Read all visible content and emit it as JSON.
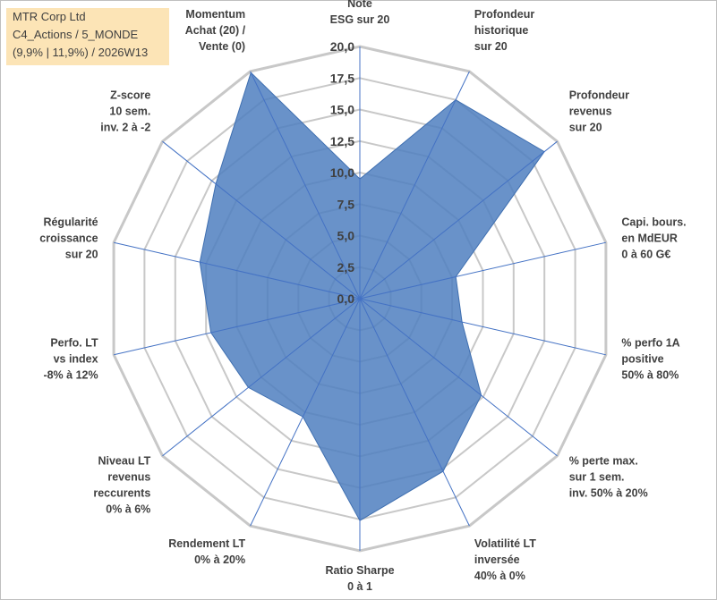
{
  "title": {
    "line1": "MTR Corp Ltd",
    "line2": "C4_Actions / 5_MONDE",
    "line3": "(9,9% | 11,9%) / 2026W13"
  },
  "chart_data": {
    "type": "radar",
    "title": "MTR Corp Ltd",
    "rmin": 0,
    "rmax": 20,
    "tick_step": 2.5,
    "tick_labels": [
      "0,0",
      "2,5",
      "5,0",
      "7,5",
      "10,0",
      "12,5",
      "15,0",
      "17,5",
      "20,0"
    ],
    "axes": [
      {
        "label": [
          "Note",
          "ESG sur 20"
        ],
        "value": 9.5
      },
      {
        "label": [
          "Profondeur",
          "historique",
          "sur 20"
        ],
        "value": 17.5
      },
      {
        "label": [
          "Profondeur",
          "revenus",
          "sur 20"
        ],
        "value": 18.7
      },
      {
        "label": [
          "Capi. bours.",
          "en MdEUR",
          "0 à 60 G€"
        ],
        "value": 7.8
      },
      {
        "label": [
          "% perfo 1A",
          "positive",
          "50% à 80%"
        ],
        "value": 8.3
      },
      {
        "label": [
          "% perte max.",
          "sur 1 sem.",
          "inv. 50% à 20%"
        ],
        "value": 12.3
      },
      {
        "label": [
          "Volatilité LT",
          "inversée",
          "40% à 0%"
        ],
        "value": 15.2
      },
      {
        "label": [
          "Ratio Sharpe",
          "0 à 1"
        ],
        "value": 17.6
      },
      {
        "label": [
          "Rendement LT",
          "0% à 20%"
        ],
        "value": 10.4
      },
      {
        "label": [
          "Niveau LT",
          "revenus",
          "reccurents",
          "0% à 6%"
        ],
        "value": 11.3
      },
      {
        "label": [
          "Perfo. LT",
          "vs index",
          "-8% à 12%"
        ],
        "value": 12.1
      },
      {
        "label": [
          "Régularité",
          "croissance",
          "sur 20"
        ],
        "value": 13.0
      },
      {
        "label": [
          "Z-score",
          "10 sem.",
          "inv. 2 à -2"
        ],
        "value": 14.6
      },
      {
        "label": [
          "Momentum",
          "Achat (20) /",
          "Vente (0)"
        ],
        "value": 19.9
      }
    ],
    "series": [
      {
        "name": "MTR Corp Ltd",
        "color": "#4f7fbf"
      }
    ],
    "grid_color": "#c8c8c8",
    "spoke_color": "#4472c4"
  }
}
